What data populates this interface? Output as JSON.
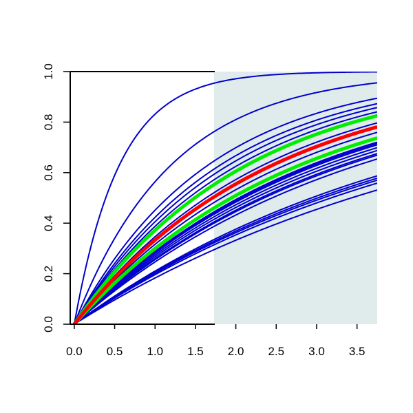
{
  "chart_data": {
    "type": "line",
    "title": "",
    "xlabel": "",
    "ylabel": "",
    "xlim": [
      -0.05,
      3.75
    ],
    "ylim": [
      0.0,
      1.0
    ],
    "x_ticks": [
      "0.0",
      "0.5",
      "1.0",
      "1.5",
      "2.0",
      "2.5",
      "3.0",
      "3.5"
    ],
    "y_ticks": [
      "0.0",
      "0.2",
      "0.4",
      "0.6",
      "0.8",
      "1.0"
    ],
    "shaded_region_x": [
      1.73,
      3.75
    ],
    "shade_color": "#e0ecec",
    "curve_form": "y = 1 - exp(-rate * x)",
    "series": [
      {
        "color": "#0000cc",
        "rate": 1.78
      },
      {
        "color": "#0000cc",
        "rate": 0.83
      },
      {
        "color": "#0000cc",
        "rate": 0.6
      },
      {
        "color": "#0000cc",
        "rate": 0.55
      },
      {
        "color": "#0000cc",
        "rate": 0.52
      },
      {
        "color": "#0000cc",
        "rate": 0.49
      },
      {
        "color": "#0000cc",
        "rate": 0.47
      },
      {
        "color": "#0000cc",
        "rate": 0.425
      },
      {
        "color": "#0000cc",
        "rate": 0.4
      },
      {
        "color": "#0000cc",
        "rate": 0.38
      },
      {
        "color": "#0000cc",
        "rate": 0.34
      },
      {
        "color": "#0000cc",
        "rate": 0.335
      },
      {
        "color": "#0000cc",
        "rate": 0.33
      },
      {
        "color": "#0000cc",
        "rate": 0.32
      },
      {
        "color": "#0000cc",
        "rate": 0.31
      },
      {
        "color": "#0000cc",
        "rate": 0.3
      },
      {
        "color": "#0000cc",
        "rate": 0.295
      },
      {
        "color": "#0000cc",
        "rate": 0.283
      },
      {
        "color": "#0000cc",
        "rate": 0.236
      },
      {
        "color": "#0000cc",
        "rate": 0.23
      },
      {
        "color": "#0000cc",
        "rate": 0.225
      },
      {
        "color": "#0000cc",
        "rate": 0.218
      },
      {
        "color": "#0000cc",
        "rate": 0.202
      },
      {
        "color": "#00ee00",
        "rate": 0.465,
        "emphasis": true
      },
      {
        "color": "#00ee00",
        "rate": 0.356,
        "emphasis": true
      },
      {
        "color": "#ff0000",
        "rate": 0.405,
        "emphasis": true
      }
    ]
  }
}
